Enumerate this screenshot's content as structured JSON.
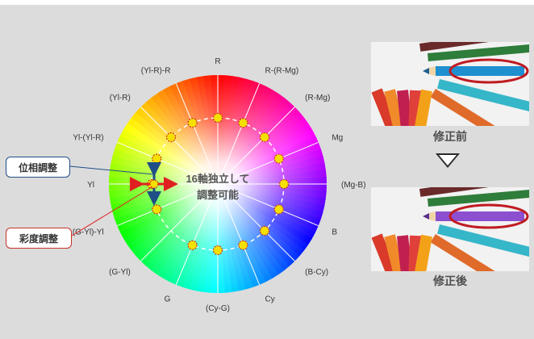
{
  "wheel": {
    "hue_labels": [
      "R",
      "R-(R-Mg)",
      "(R-Mg)",
      "Mg",
      "(Mg-B)",
      "B",
      "(B-Cy)",
      "Cy",
      "(Cy-G)",
      "G",
      "(G-Yl)",
      "(G-Yl)-Yl",
      "Yl",
      "Yl-(Yl-R)",
      "(Yl-R)",
      "(Yl-R)-R"
    ],
    "center_line1": "16軸独立して",
    "center_line2": "調整可能"
  },
  "callouts": {
    "phase": "位相調整",
    "saturation": "彩度調整"
  },
  "comparison": {
    "before_caption": "修正前",
    "after_caption": "修正後",
    "highlight_color_before": "#1e90d0",
    "highlight_color_after": "#8c4fd0",
    "ring_color": "#c01b22"
  },
  "colors": {
    "phase_arrow": "#1f4e86",
    "saturation_arrow": "#e02020",
    "control_dot": "#f5e000"
  }
}
